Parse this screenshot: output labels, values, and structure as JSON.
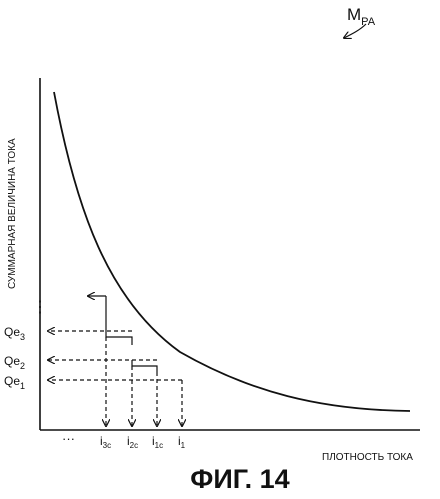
{
  "reference_label": "M",
  "reference_label_sub": "PA",
  "y_axis_label": "СУММАРНАЯ ВЕЛИЧИНА ТОКА",
  "x_axis_label": "ПЛОТНОСТЬ ТОКА",
  "figure_caption": "ФИГ. 14",
  "y_ellipsis": "⋮",
  "x_ellipsis": "···",
  "y_levels": [
    {
      "base": "Qe",
      "sub": "3"
    },
    {
      "base": "Qe",
      "sub": "2"
    },
    {
      "base": "Qe",
      "sub": "1"
    }
  ],
  "x_points": [
    {
      "base": "i",
      "sub": "3c"
    },
    {
      "base": "i",
      "sub": "2c"
    },
    {
      "base": "i",
      "sub": "1c"
    },
    {
      "base": "i",
      "sub": "1"
    }
  ]
}
